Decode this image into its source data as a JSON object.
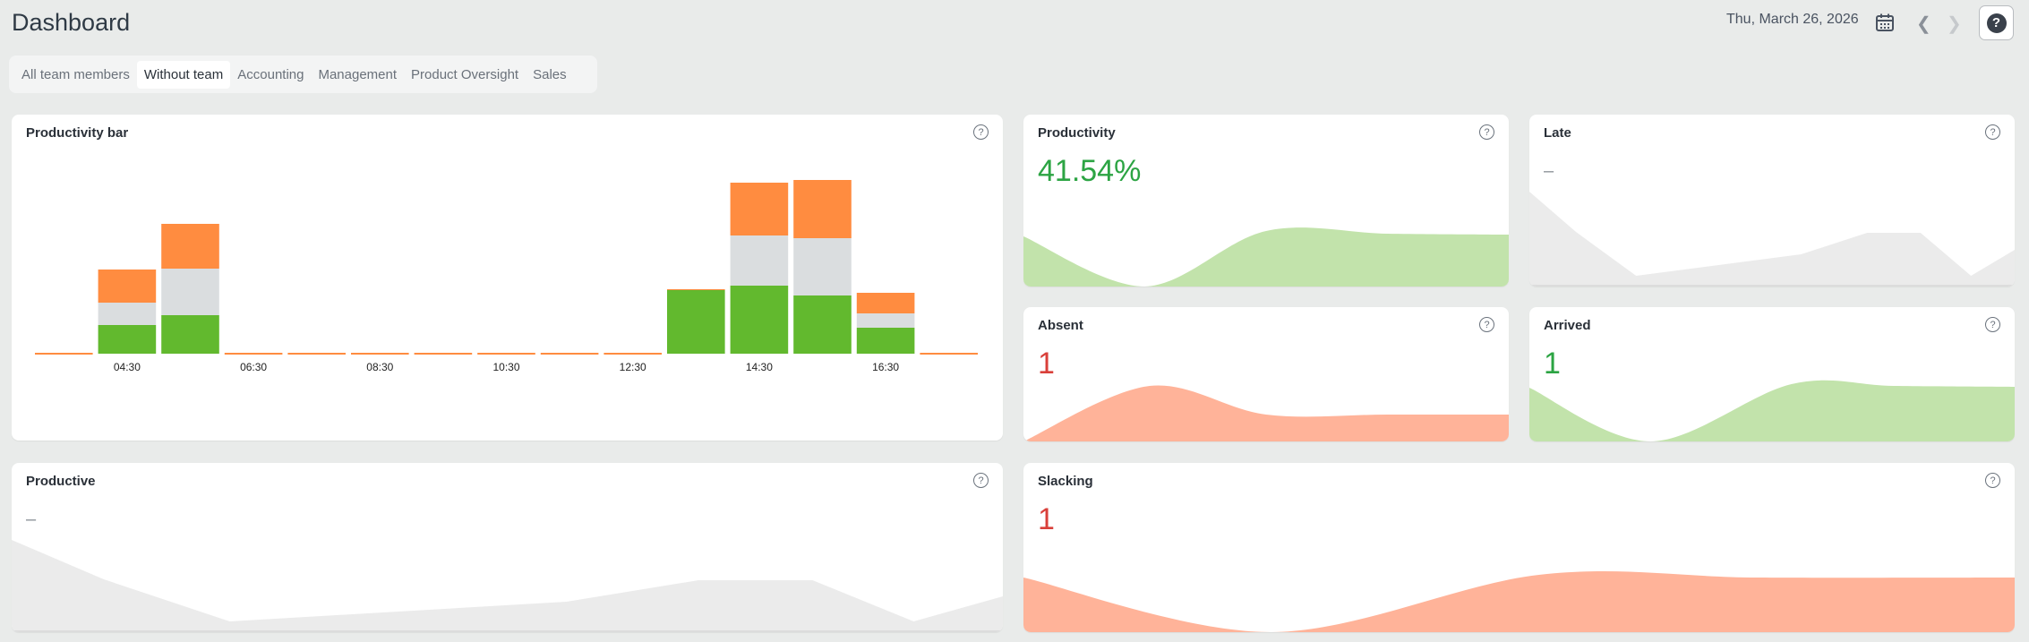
{
  "header": {
    "title": "Dashboard",
    "date": "Thu, March 26, 2026",
    "help_label": "?"
  },
  "tabs": [
    {
      "label": "All team members",
      "active": false
    },
    {
      "label": "Without team",
      "active": true
    },
    {
      "label": "Accounting",
      "active": false
    },
    {
      "label": "Management",
      "active": false
    },
    {
      "label": "Product Oversight",
      "active": false
    },
    {
      "label": "Sales",
      "active": false
    }
  ],
  "colors": {
    "productive": "#62b92e",
    "neutral": "#dadddf",
    "unproductive": "#ff8c40",
    "green_fill": "#c2e3ab",
    "salmon_fill": "#ffb399",
    "gray_fill": "#ebebeb",
    "green_text": "#2ca443",
    "red_text": "#d9403a"
  },
  "cards": {
    "productivity_bar": {
      "title": "Productivity bar"
    },
    "productivity": {
      "title": "Productivity",
      "value": "41.54%"
    },
    "late": {
      "title": "Late",
      "value": "–"
    },
    "absent": {
      "title": "Absent",
      "value": "1"
    },
    "arrived": {
      "title": "Arrived",
      "value": "1"
    },
    "productive": {
      "title": "Productive",
      "value": "–"
    },
    "slacking": {
      "title": "Slacking",
      "value": "1"
    }
  },
  "chart_data": [
    {
      "type": "bar",
      "stacked": true,
      "title": "Productivity bar",
      "slots": 15,
      "tick_labels": [
        "04:30",
        "06:30",
        "08:30",
        "10:30",
        "12:30",
        "14:30",
        "16:30"
      ],
      "ylim": [
        0,
        245
      ],
      "series": {
        "productive": [
          0,
          32,
          43,
          0,
          0,
          0,
          0,
          0,
          0,
          0,
          71,
          76,
          65,
          29,
          0
        ],
        "neutral": [
          0,
          25,
          52,
          0,
          0,
          0,
          0,
          0,
          0,
          0,
          0,
          56,
          64,
          16,
          0
        ],
        "unproductive": [
          0,
          37,
          50,
          0,
          0,
          0,
          0,
          0,
          0,
          0,
          1,
          59,
          65,
          23,
          0
        ]
      }
    },
    {
      "type": "area",
      "name": "productivity",
      "smooth": true,
      "fill": "green",
      "points": [
        [
          0,
          56
        ],
        [
          25,
          0
        ],
        [
          50,
          62
        ],
        [
          75,
          59
        ],
        [
          100,
          58
        ]
      ]
    },
    {
      "type": "area",
      "name": "late",
      "smooth": false,
      "fill": "gray",
      "points": [
        [
          0,
          106
        ],
        [
          9.6,
          61
        ],
        [
          22,
          12
        ],
        [
          56,
          36
        ],
        [
          69.6,
          60
        ],
        [
          80.6,
          60
        ],
        [
          91,
          12
        ],
        [
          100,
          41
        ]
      ]
    },
    {
      "type": "area",
      "name": "absent",
      "smooth": true,
      "fill": "salmon",
      "points": [
        [
          0,
          0
        ],
        [
          26,
          62
        ],
        [
          50,
          30
        ],
        [
          75,
          30
        ],
        [
          100,
          30
        ]
      ]
    },
    {
      "type": "area",
      "name": "arrived",
      "smooth": true,
      "fill": "green",
      "points": [
        [
          0,
          60
        ],
        [
          25,
          0
        ],
        [
          54,
          64
        ],
        [
          75,
          62
        ],
        [
          100,
          61
        ]
      ]
    },
    {
      "type": "area",
      "name": "productive",
      "smooth": false,
      "fill": "gray",
      "points": [
        [
          0,
          103
        ],
        [
          9.3,
          59
        ],
        [
          22,
          12
        ],
        [
          56,
          34
        ],
        [
          69.3,
          58
        ],
        [
          80.8,
          58
        ],
        [
          91,
          12
        ],
        [
          100,
          40
        ]
      ]
    },
    {
      "type": "area",
      "name": "slacking",
      "smooth": true,
      "fill": "salmon",
      "points": [
        [
          0,
          61
        ],
        [
          25,
          0
        ],
        [
          52,
          64
        ],
        [
          74,
          61
        ],
        [
          100,
          61
        ]
      ]
    }
  ]
}
